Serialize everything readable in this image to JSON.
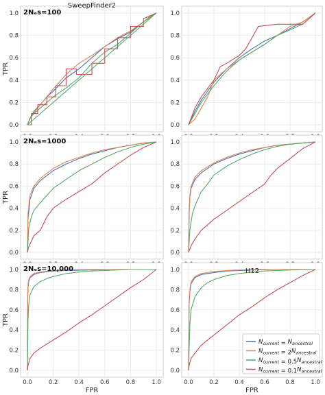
{
  "colors": {
    "grid": "#ebebeb",
    "frame": "#cfcfcf",
    "N_current_eq_N_anc": "#4c72b0",
    "N_current_2N_anc": "#dd8452",
    "N_current_05N_anc": "#55a868",
    "N_current_01N_anc": "#c44e52"
  },
  "legend": {
    "position": "lower-right",
    "entries": [
      {
        "prefix": "N",
        "sub": "current",
        "mid": " = ",
        "coef": "",
        "suffix": "N",
        "sub2": "ancestral"
      },
      {
        "prefix": "N",
        "sub": "current",
        "mid": " = ",
        "coef": "2",
        "suffix": "N",
        "sub2": "ancestral"
      },
      {
        "prefix": "N",
        "sub": "current",
        "mid": " = ",
        "coef": "0.5",
        "suffix": "N",
        "sub2": "ancestral"
      },
      {
        "prefix": "N",
        "sub": "current",
        "mid": " = ",
        "coef": "0.1",
        "suffix": "N",
        "sub2": "ancestral"
      }
    ]
  },
  "chart_data": [
    {
      "type": "line",
      "column_title": "SweepFinder2",
      "annotation": "2Nₑs=100",
      "xlabel": "",
      "ylabel": "TPR",
      "xlim": [
        0,
        1
      ],
      "ylim": [
        0,
        1
      ],
      "grid": true,
      "xticks": [
        "0.0",
        "0.2",
        "0.4",
        "0.6",
        "0.8",
        "1.0"
      ],
      "yticks": [
        "0.0",
        "0.2",
        "0.4",
        "0.6",
        "0.8",
        "1.0"
      ],
      "series": [
        {
          "color_key": "N_current_eq_N_anc",
          "x": [
            0,
            0.02,
            0.05,
            0.1,
            0.15,
            0.2,
            0.3,
            0.4,
            0.5,
            0.6,
            0.7,
            0.8,
            0.9,
            0.95,
            1.0
          ],
          "y": [
            0,
            0.05,
            0.12,
            0.18,
            0.25,
            0.3,
            0.42,
            0.5,
            0.6,
            0.7,
            0.77,
            0.83,
            0.92,
            0.96,
            1.0
          ]
        },
        {
          "color_key": "N_current_2N_anc",
          "x": [
            0,
            0.03,
            0.08,
            0.13,
            0.2,
            0.3,
            0.4,
            0.5,
            0.6,
            0.7,
            0.8,
            0.9,
            0.95,
            1.0
          ],
          "y": [
            0,
            0.08,
            0.15,
            0.22,
            0.32,
            0.45,
            0.55,
            0.62,
            0.7,
            0.78,
            0.84,
            0.92,
            0.97,
            1.0
          ]
        },
        {
          "color_key": "N_current_05N_anc",
          "x": [
            0,
            0.02,
            0.05,
            0.1,
            0.2,
            0.3,
            0.4,
            0.5,
            0.6,
            0.7,
            0.8,
            0.9,
            1.0
          ],
          "y": [
            0,
            0.06,
            0.1,
            0.15,
            0.25,
            0.33,
            0.42,
            0.55,
            0.65,
            0.72,
            0.82,
            0.92,
            1.0
          ]
        },
        {
          "color_key": "N_current_01N_anc",
          "x": [
            0,
            0.03,
            0.03,
            0.08,
            0.08,
            0.15,
            0.15,
            0.22,
            0.22,
            0.3,
            0.3,
            0.38,
            0.38,
            0.5,
            0.5,
            0.6,
            0.6,
            0.7,
            0.7,
            0.8,
            0.8,
            0.9,
            0.9,
            1.0
          ],
          "y": [
            0,
            0,
            0.1,
            0.1,
            0.18,
            0.18,
            0.25,
            0.25,
            0.35,
            0.35,
            0.5,
            0.5,
            0.45,
            0.45,
            0.55,
            0.55,
            0.68,
            0.68,
            0.78,
            0.78,
            0.88,
            0.88,
            0.95,
            1.0
          ]
        },
        {
          "color_key": "N_current_05N_anc",
          "x": [
            0,
            1
          ],
          "y": [
            0,
            1
          ]
        }
      ]
    },
    {
      "type": "line",
      "column_title": "",
      "annotation": "",
      "xlabel": "",
      "ylabel": "",
      "xlim": [
        0,
        1
      ],
      "ylim": [
        0,
        1
      ],
      "grid": true,
      "xticks": [
        "0.0",
        "0.2",
        "0.4",
        "0.6",
        "0.8",
        "1.0"
      ],
      "yticks": [
        "0.0",
        "0.2",
        "0.4",
        "0.6",
        "0.8",
        "1.0"
      ],
      "series": [
        {
          "color_key": "N_current_eq_N_anc",
          "x": [
            0,
            0.05,
            0.1,
            0.2,
            0.3,
            0.4,
            0.5,
            0.6,
            0.7,
            0.8,
            0.9,
            1.0
          ],
          "y": [
            0,
            0.12,
            0.22,
            0.38,
            0.5,
            0.6,
            0.68,
            0.75,
            0.8,
            0.86,
            0.92,
            1.0
          ]
        },
        {
          "color_key": "N_current_2N_anc",
          "x": [
            0,
            0.05,
            0.1,
            0.15,
            0.2,
            0.3,
            0.4,
            0.5,
            0.6,
            0.7,
            0.8,
            0.9,
            1.0
          ],
          "y": [
            0,
            0.05,
            0.15,
            0.25,
            0.4,
            0.5,
            0.58,
            0.65,
            0.72,
            0.8,
            0.88,
            0.92,
            1.0
          ]
        },
        {
          "color_key": "N_current_05N_anc",
          "x": [
            0,
            0.05,
            0.1,
            0.2,
            0.3,
            0.4,
            0.5,
            0.6,
            0.7,
            0.8,
            0.9,
            1.0
          ],
          "y": [
            0,
            0.1,
            0.2,
            0.35,
            0.48,
            0.58,
            0.65,
            0.72,
            0.8,
            0.85,
            0.9,
            1.0
          ]
        },
        {
          "color_key": "N_current_01N_anc",
          "x": [
            0,
            0.05,
            0.1,
            0.2,
            0.25,
            0.3,
            0.4,
            0.45,
            0.55,
            0.7,
            0.8,
            0.9,
            1.0
          ],
          "y": [
            0,
            0.15,
            0.25,
            0.4,
            0.52,
            0.55,
            0.62,
            0.68,
            0.88,
            0.9,
            0.9,
            0.9,
            1.0
          ]
        }
      ]
    },
    {
      "type": "line",
      "column_title": "",
      "annotation": "2Nₑs=1000",
      "xlabel": "",
      "ylabel": "TPR",
      "xlim": [
        0,
        1
      ],
      "ylim": [
        0,
        1
      ],
      "grid": true,
      "xticks": [
        "0.0",
        "0.2",
        "0.4",
        "0.6",
        "0.8",
        "1.0"
      ],
      "yticks": [
        "0.0",
        "0.2",
        "0.4",
        "0.6",
        "0.8",
        "1.0"
      ],
      "series": [
        {
          "color_key": "N_current_eq_N_anc",
          "x": [
            0,
            0.005,
            0.02,
            0.05,
            0.1,
            0.2,
            0.3,
            0.4,
            0.5,
            0.6,
            0.7,
            0.8,
            0.9,
            1.0
          ],
          "y": [
            0,
            0.3,
            0.48,
            0.58,
            0.65,
            0.74,
            0.8,
            0.85,
            0.89,
            0.92,
            0.95,
            0.97,
            0.99,
            1.0
          ]
        },
        {
          "color_key": "N_current_2N_anc",
          "x": [
            0,
            0.005,
            0.02,
            0.05,
            0.1,
            0.2,
            0.3,
            0.4,
            0.5,
            0.6,
            0.7,
            0.8,
            0.9,
            1.0
          ],
          "y": [
            0,
            0.35,
            0.52,
            0.6,
            0.67,
            0.76,
            0.82,
            0.86,
            0.9,
            0.93,
            0.95,
            0.97,
            0.99,
            1.0
          ]
        },
        {
          "color_key": "N_current_05N_anc",
          "x": [
            0,
            0.01,
            0.03,
            0.05,
            0.1,
            0.2,
            0.3,
            0.4,
            0.5,
            0.6,
            0.7,
            0.8,
            0.9,
            1.0
          ],
          "y": [
            0,
            0.22,
            0.32,
            0.38,
            0.45,
            0.58,
            0.66,
            0.74,
            0.8,
            0.86,
            0.91,
            0.95,
            0.98,
            1.0
          ]
        },
        {
          "color_key": "N_current_01N_anc",
          "x": [
            0,
            0.01,
            0.05,
            0.1,
            0.15,
            0.2,
            0.3,
            0.4,
            0.5,
            0.6,
            0.7,
            0.8,
            0.9,
            1.0
          ],
          "y": [
            0,
            0.05,
            0.15,
            0.2,
            0.32,
            0.4,
            0.48,
            0.55,
            0.62,
            0.72,
            0.8,
            0.88,
            0.95,
            1.0
          ]
        }
      ]
    },
    {
      "type": "line",
      "column_title": "",
      "annotation": "",
      "xlabel": "",
      "ylabel": "",
      "xlim": [
        0,
        1
      ],
      "ylim": [
        0,
        1
      ],
      "grid": true,
      "xticks": [
        "0.0",
        "0.2",
        "0.4",
        "0.6",
        "0.8",
        "1.0"
      ],
      "yticks": [
        "0.0",
        "0.2",
        "0.4",
        "0.6",
        "0.8",
        "1.0"
      ],
      "series": [
        {
          "color_key": "N_current_eq_N_anc",
          "x": [
            0,
            0.005,
            0.01,
            0.02,
            0.05,
            0.1,
            0.2,
            0.3,
            0.4,
            0.5,
            0.6,
            0.7,
            0.8,
            0.9,
            1.0
          ],
          "y": [
            0,
            0.35,
            0.5,
            0.58,
            0.66,
            0.72,
            0.8,
            0.85,
            0.89,
            0.92,
            0.95,
            0.97,
            0.98,
            0.99,
            1.0
          ]
        },
        {
          "color_key": "N_current_2N_anc",
          "x": [
            0,
            0.005,
            0.01,
            0.02,
            0.05,
            0.1,
            0.2,
            0.3,
            0.4,
            0.5,
            0.6,
            0.7,
            0.8,
            0.9,
            1.0
          ],
          "y": [
            0,
            0.38,
            0.52,
            0.6,
            0.68,
            0.74,
            0.81,
            0.86,
            0.9,
            0.93,
            0.95,
            0.97,
            0.98,
            0.99,
            1.0
          ]
        },
        {
          "color_key": "N_current_05N_anc",
          "x": [
            0,
            0.01,
            0.03,
            0.05,
            0.1,
            0.15,
            0.2,
            0.3,
            0.4,
            0.5,
            0.6,
            0.7,
            0.8,
            0.9,
            1.0
          ],
          "y": [
            0,
            0.2,
            0.35,
            0.42,
            0.55,
            0.62,
            0.7,
            0.78,
            0.84,
            0.89,
            0.93,
            0.96,
            0.98,
            0.99,
            1.0
          ]
        },
        {
          "color_key": "N_current_01N_anc",
          "x": [
            0,
            0.02,
            0.05,
            0.1,
            0.2,
            0.3,
            0.4,
            0.5,
            0.6,
            0.65,
            0.7,
            0.8,
            0.9,
            1.0
          ],
          "y": [
            0,
            0.06,
            0.12,
            0.2,
            0.3,
            0.38,
            0.46,
            0.54,
            0.62,
            0.7,
            0.76,
            0.85,
            0.94,
            1.0
          ]
        }
      ]
    },
    {
      "type": "line",
      "column_title": "",
      "annotation": "2Nₑs=10,000",
      "xlabel": "FPR",
      "ylabel": "TPR",
      "xlim": [
        0,
        1
      ],
      "ylim": [
        0,
        1
      ],
      "grid": true,
      "xticks": [
        "0.0",
        "0.2",
        "0.4",
        "0.6",
        "0.8",
        "1.0"
      ],
      "yticks": [
        "0.0",
        "0.2",
        "0.4",
        "0.6",
        "0.8",
        "1.0"
      ],
      "series": [
        {
          "color_key": "N_current_eq_N_anc",
          "x": [
            0,
            0.002,
            0.005,
            0.01,
            0.02,
            0.05,
            0.1,
            0.2,
            0.3,
            0.5,
            0.7,
            1.0
          ],
          "y": [
            0,
            0.7,
            0.82,
            0.88,
            0.92,
            0.95,
            0.97,
            0.985,
            0.99,
            0.995,
            1.0,
            1.0
          ]
        },
        {
          "color_key": "N_current_2N_anc",
          "x": [
            0,
            0.002,
            0.005,
            0.01,
            0.02,
            0.05,
            0.1,
            0.2,
            0.3,
            0.5,
            0.7,
            1.0
          ],
          "y": [
            0,
            0.75,
            0.85,
            0.9,
            0.93,
            0.96,
            0.975,
            0.99,
            0.995,
            1.0,
            1.0,
            1.0
          ]
        },
        {
          "color_key": "N_current_05N_anc",
          "x": [
            0,
            0.005,
            0.01,
            0.02,
            0.05,
            0.1,
            0.15,
            0.2,
            0.3,
            0.4,
            0.5,
            0.6,
            0.8,
            1.0
          ],
          "y": [
            0,
            0.5,
            0.65,
            0.75,
            0.83,
            0.88,
            0.91,
            0.93,
            0.96,
            0.975,
            0.985,
            0.99,
            1.0,
            1.0
          ]
        },
        {
          "color_key": "N_current_01N_anc",
          "x": [
            0,
            0.005,
            0.02,
            0.05,
            0.1,
            0.2,
            0.3,
            0.4,
            0.5,
            0.6,
            0.7,
            0.8,
            0.9,
            1.0
          ],
          "y": [
            0,
            0.05,
            0.12,
            0.17,
            0.22,
            0.3,
            0.38,
            0.47,
            0.55,
            0.64,
            0.73,
            0.82,
            0.9,
            1.0
          ]
        }
      ]
    },
    {
      "type": "line",
      "column_title": "H12",
      "annotation": "",
      "xlabel": "FPR",
      "ylabel": "",
      "xlim": [
        0,
        1
      ],
      "ylim": [
        0,
        1
      ],
      "grid": true,
      "xticks": [
        "0.0",
        "0.2",
        "0.4",
        "0.6",
        "0.8",
        "1.0"
      ],
      "yticks": [
        "0.0",
        "0.2",
        "0.4",
        "0.6",
        "0.8",
        "1.0"
      ],
      "series": [
        {
          "color_key": "N_current_eq_N_anc",
          "x": [
            0,
            0.005,
            0.01,
            0.02,
            0.05,
            0.1,
            0.2,
            0.3,
            0.5,
            0.7,
            1.0
          ],
          "y": [
            0,
            0.65,
            0.78,
            0.86,
            0.92,
            0.95,
            0.97,
            0.985,
            0.995,
            1.0,
            1.0
          ]
        },
        {
          "color_key": "N_current_2N_anc",
          "x": [
            0,
            0.005,
            0.01,
            0.02,
            0.05,
            0.1,
            0.2,
            0.3,
            0.5,
            0.7,
            1.0
          ],
          "y": [
            0,
            0.68,
            0.8,
            0.88,
            0.93,
            0.96,
            0.98,
            0.99,
            1.0,
            1.0,
            1.0
          ]
        },
        {
          "color_key": "N_current_05N_anc",
          "x": [
            0,
            0.01,
            0.02,
            0.05,
            0.1,
            0.15,
            0.2,
            0.3,
            0.4,
            0.5,
            0.6,
            0.8,
            1.0
          ],
          "y": [
            0,
            0.45,
            0.6,
            0.73,
            0.82,
            0.87,
            0.9,
            0.94,
            0.96,
            0.975,
            0.985,
            0.995,
            1.0
          ]
        },
        {
          "color_key": "N_current_01N_anc",
          "x": [
            0,
            0.005,
            0.02,
            0.05,
            0.1,
            0.2,
            0.3,
            0.4,
            0.5,
            0.6,
            0.7,
            0.8,
            0.9,
            1.0
          ],
          "y": [
            0,
            0.05,
            0.12,
            0.17,
            0.25,
            0.35,
            0.45,
            0.55,
            0.63,
            0.72,
            0.8,
            0.87,
            0.94,
            1.0
          ]
        }
      ]
    }
  ]
}
